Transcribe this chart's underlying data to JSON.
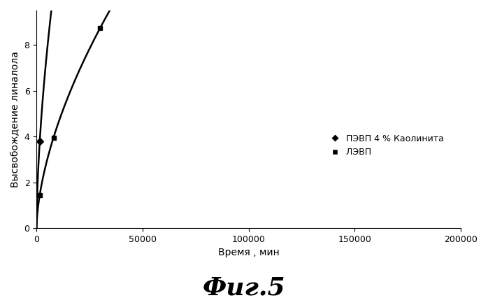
{
  "title_fig": "Фиг.5",
  "xlabel": "Время , мин",
  "ylabel": "Высвобождение линалола",
  "xlim": [
    0,
    200000
  ],
  "ylim": [
    0,
    9.5
  ],
  "yticks": [
    0,
    2,
    4,
    6,
    8
  ],
  "xticks": [
    0,
    50000,
    100000,
    150000,
    200000
  ],
  "xtick_labels": [
    "0",
    "50000",
    "100000",
    "150000",
    "200000"
  ],
  "curve1_label": " ПЭВП 4 % Каолинита",
  "curve2_label": " ЛЭВП",
  "curve1_color": "#000000",
  "curve2_color": "#000000",
  "curve1_marker": "D",
  "curve2_marker": "s",
  "curve1_a": 0.047,
  "curve1_b": 0.6,
  "curve2_a": 0.018,
  "curve2_b": 0.6,
  "marker_x": [
    1500,
    8000,
    30000,
    80000,
    170000
  ],
  "background_color": "#ffffff",
  "fig_title_fontsize": 26,
  "axis_label_fontsize": 10,
  "tick_fontsize": 9,
  "legend_fontsize": 9
}
